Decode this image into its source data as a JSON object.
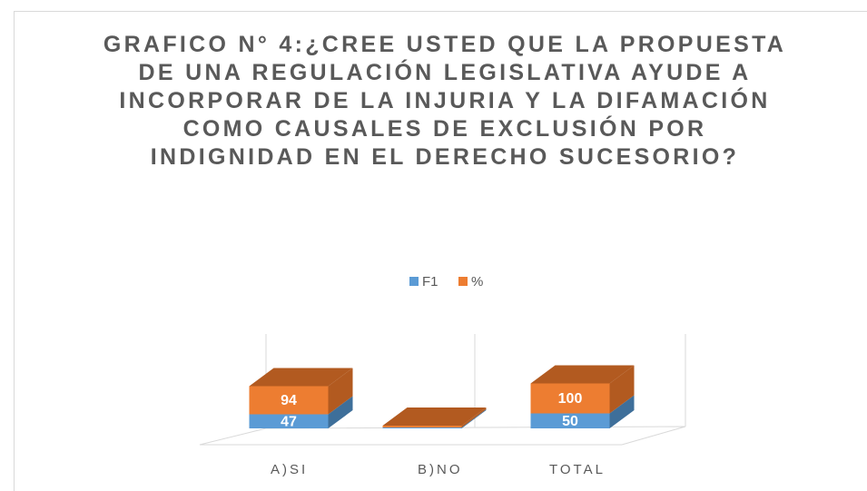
{
  "chart_data": {
    "type": "bar3d_stacked",
    "title": "GRAFICO N° 4:¿CREE USTED QUE LA PROPUESTA DE UNA REGULACIÓN LEGISLATIVA AYUDE A INCORPORAR DE LA INJURIA Y LA DIFAMACIÓN COMO CAUSALES DE EXCLUSIÓN POR INDIGNIDAD EN EL DERECHO SUCESORIO?",
    "categories": [
      "A)SI",
      "B)NO",
      "TOTAL"
    ],
    "series": [
      {
        "name": "F1",
        "color": "#5b9bd5",
        "side": "#3e6f9a",
        "values": [
          47,
          3,
          50
        ]
      },
      {
        "name": "%",
        "color": "#ed7d31",
        "side": "#b25a20",
        "values": [
          94,
          6,
          100
        ]
      }
    ],
    "legend": "top"
  }
}
